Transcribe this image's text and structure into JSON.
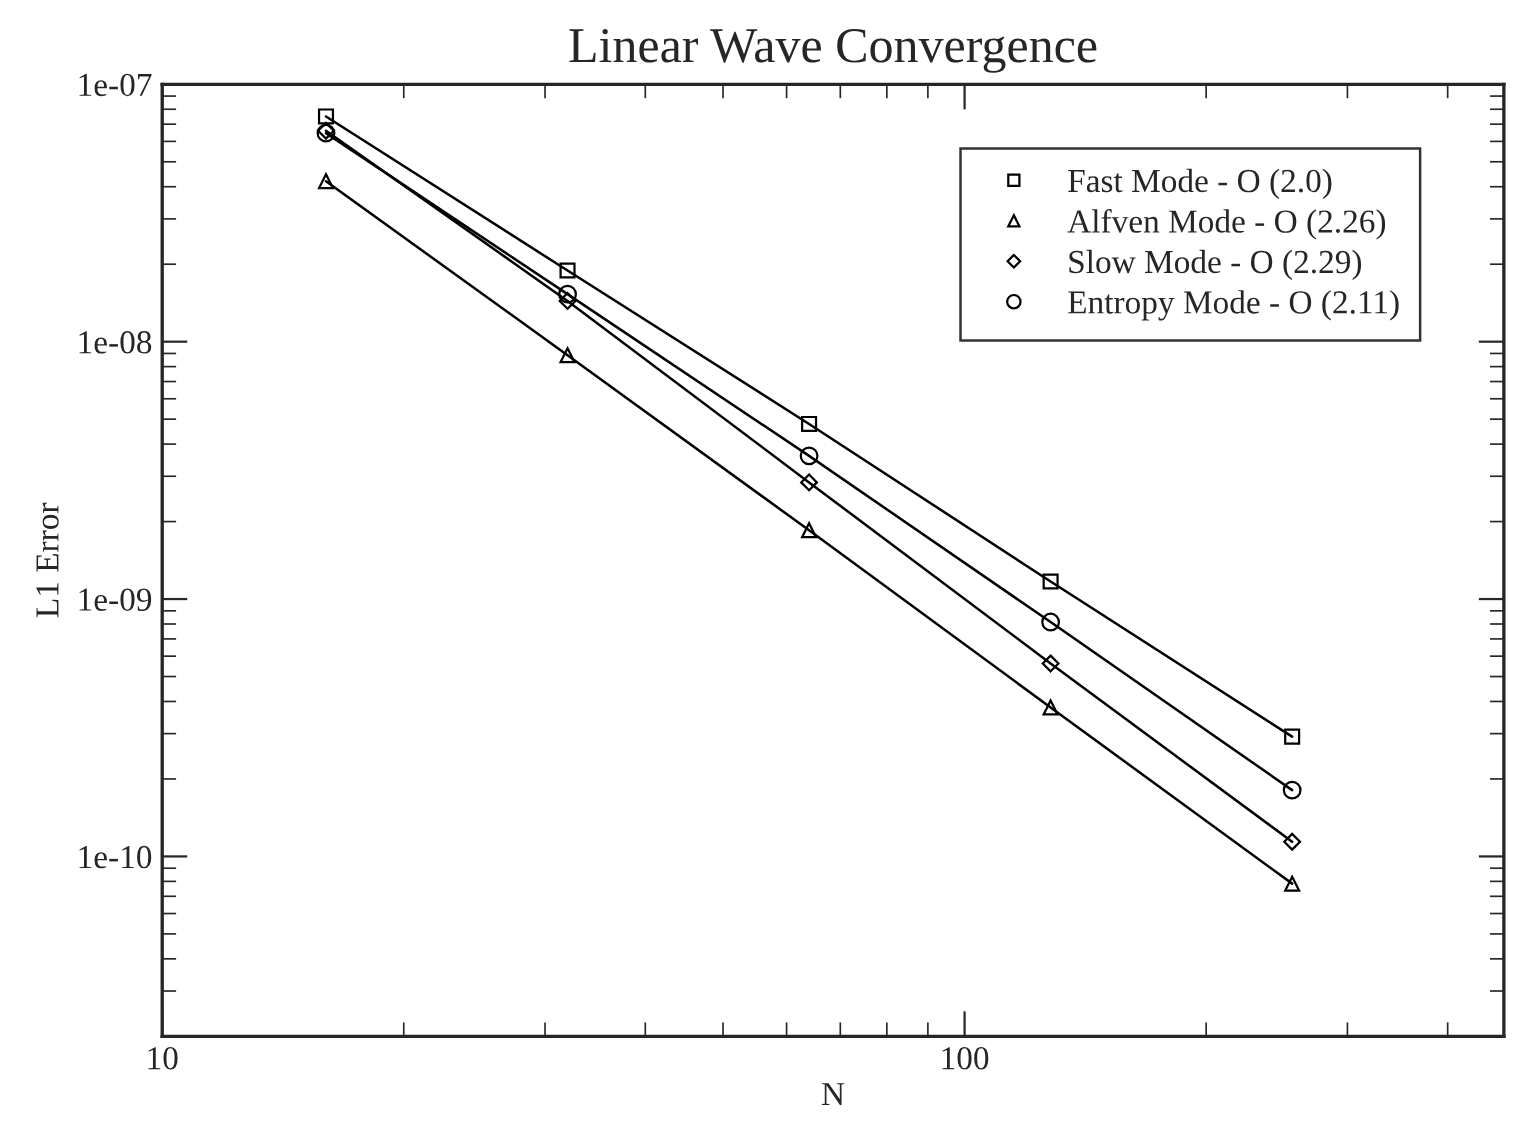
{
  "chart_data": {
    "type": "line",
    "title": "Linear Wave Convergence",
    "xlabel": "N",
    "ylabel": "L1 Error",
    "x": [
      16,
      32,
      64,
      128,
      256
    ],
    "series": [
      {
        "name": "Fast Mode - O (2.0)",
        "color": "#000000",
        "marker": "square",
        "values": [
          7.5e-08,
          1.89e-08,
          4.79e-09,
          1.17e-09,
          2.92e-10
        ]
      },
      {
        "name": "Alfven Mode - O (2.26)",
        "color": "#000000",
        "marker": "triangle",
        "values": [
          4.2e-08,
          8.86e-09,
          1.85e-09,
          3.79e-10,
          7.84e-11
        ]
      },
      {
        "name": "Slow Mode - O (2.29)",
        "color": "#000000",
        "marker": "diamond",
        "values": [
          6.6e-08,
          1.44e-08,
          2.84e-09,
          5.62e-10,
          1.14e-10
        ]
      },
      {
        "name": "Entropy Mode - O (2.11)",
        "color": "#000000",
        "marker": "circle",
        "values": [
          6.46e-08,
          1.53e-08,
          3.6e-09,
          8.14e-10,
          1.81e-10
        ]
      }
    ],
    "log": "xy",
    "xlim": [
      10,
      470
    ],
    "ylim": [
      2e-11,
      1e-07
    ],
    "xticks": [
      10,
      100
    ],
    "yticks": [
      {
        "value": 1e-07,
        "label": "1e-07"
      },
      {
        "value": 1e-08,
        "label": "1e-08"
      },
      {
        "value": 1e-09,
        "label": "1e-09"
      },
      {
        "value": 1e-10,
        "label": "1e-10"
      }
    ],
    "grid": false,
    "legend": "top right",
    "line_style": "solid"
  }
}
